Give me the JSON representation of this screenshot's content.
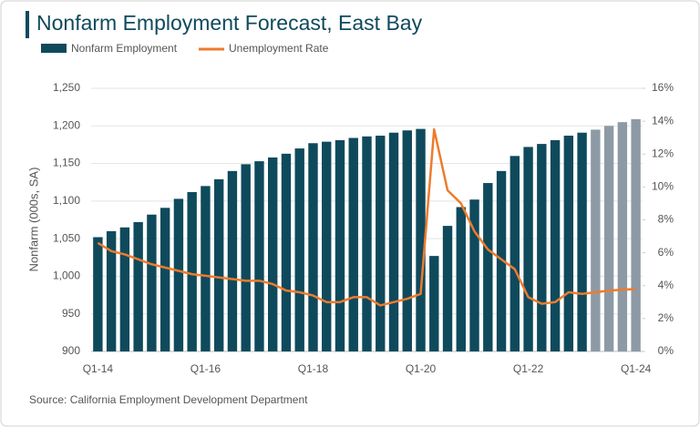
{
  "chart_data": {
    "type": "bar-line",
    "title": "Nonfarm Employment Forecast, East Bay",
    "source": "Source: California Employment Development Department",
    "y_label": "Nonfarm (000s, SA)",
    "categories": [
      "Q1-14",
      null,
      null,
      null,
      null,
      null,
      null,
      null,
      "Q1-16",
      null,
      null,
      null,
      null,
      null,
      null,
      null,
      "Q1-18",
      null,
      null,
      null,
      null,
      null,
      null,
      null,
      "Q1-20",
      null,
      null,
      null,
      null,
      null,
      null,
      null,
      "Q1-22",
      null,
      null,
      null,
      null,
      null,
      null,
      null,
      "Q1-24"
    ],
    "series": [
      {
        "name": "Nonfarm Employment",
        "color": "#0f4a5c",
        "colors": [
          "#0f4a5c",
          "#0f4a5c",
          "#0f4a5c",
          "#0f4a5c",
          "#0f4a5c",
          "#0f4a5c",
          "#0f4a5c",
          "#0f4a5c",
          "#0f4a5c",
          "#0f4a5c",
          "#0f4a5c",
          "#0f4a5c",
          "#0f4a5c",
          "#0f4a5c",
          "#0f4a5c",
          "#0f4a5c",
          "#0f4a5c",
          "#0f4a5c",
          "#0f4a5c",
          "#0f4a5c",
          "#0f4a5c",
          "#0f4a5c",
          "#0f4a5c",
          "#0f4a5c",
          "#0f4a5c",
          "#0f4a5c",
          "#0f4a5c",
          "#0f4a5c",
          "#0f4a5c",
          "#0f4a5c",
          "#0f4a5c",
          "#0f4a5c",
          "#0f4a5c",
          "#0f4a5c",
          "#0f4a5c",
          "#0f4a5c",
          "#0f4a5c",
          "#8d9aa6",
          "#8d9aa6",
          "#8d9aa6",
          "#8d9aa6"
        ],
        "values": [
          1052,
          1060,
          1065,
          1072,
          1082,
          1091,
          1103,
          1112,
          1120,
          1129,
          1140,
          1149,
          1153,
          1158,
          1163,
          1170,
          1177,
          1179,
          1181,
          1184,
          1186,
          1187,
          1191,
          1194,
          1196,
          1027,
          1067,
          1092,
          1102,
          1124,
          1140,
          1160,
          1172,
          1176,
          1181,
          1187,
          1191,
          1195,
          1200,
          1205,
          1209
        ]
      },
      {
        "name": "Unemployment Rate",
        "color": "#ee7b2c",
        "axis": "y2",
        "values": [
          6.6,
          6.1,
          5.9,
          5.6,
          5.3,
          5.1,
          4.9,
          4.7,
          4.6,
          4.5,
          4.4,
          4.3,
          4.3,
          4.1,
          3.7,
          3.6,
          3.4,
          3.0,
          3.0,
          3.3,
          3.3,
          2.8,
          3.0,
          3.2,
          3.5,
          13.5,
          9.8,
          9.0,
          7.3,
          6.2,
          5.6,
          5.0,
          3.3,
          2.9,
          3.0,
          3.6,
          3.5,
          3.6,
          3.7,
          3.75,
          3.8
        ]
      }
    ],
    "ylim": [
      900,
      1250
    ],
    "yticks": [
      {
        "value": 900,
        "label": "900"
      },
      {
        "value": 950,
        "label": "950"
      },
      {
        "value": 1000,
        "label": "1,000"
      },
      {
        "value": 1050,
        "label": "1,050"
      },
      {
        "value": 1100,
        "label": "1,100"
      },
      {
        "value": 1150,
        "label": "1,150"
      },
      {
        "value": 1200,
        "label": "1,200"
      },
      {
        "value": 1250,
        "label": "1,250"
      }
    ],
    "y2lim": [
      0,
      16
    ],
    "y2ticks": [
      {
        "value": 0,
        "label": "0%"
      },
      {
        "value": 2,
        "label": "2%"
      },
      {
        "value": 4,
        "label": "4%"
      },
      {
        "value": 6,
        "label": "6%"
      },
      {
        "value": 8,
        "label": "8%"
      },
      {
        "value": 10,
        "label": "10%"
      },
      {
        "value": 12,
        "label": "12%"
      },
      {
        "value": 14,
        "label": "14%"
      },
      {
        "value": 16,
        "label": "16%"
      }
    ],
    "grid": true
  }
}
